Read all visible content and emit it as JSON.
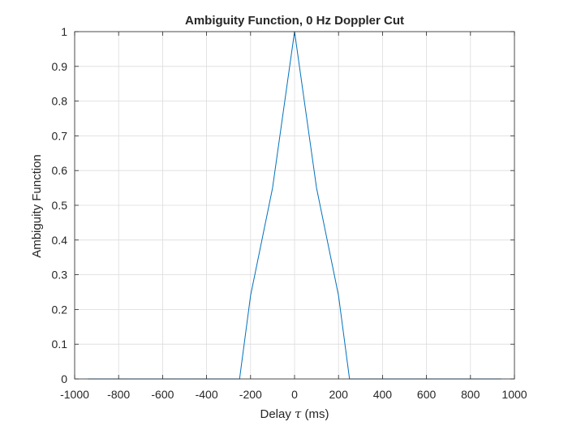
{
  "chart_data": {
    "type": "line",
    "title": "Ambiguity Function, 0 Hz Doppler Cut",
    "xlabel": {
      "prefix": "Delay ",
      "symbol": "τ",
      "suffix": " (ms)"
    },
    "ylabel": "Ambiguity Function",
    "xlim": [
      -1000,
      1000
    ],
    "ylim": [
      0,
      1
    ],
    "xticks": [
      -1000,
      -800,
      -600,
      -400,
      -200,
      0,
      200,
      400,
      600,
      800,
      1000
    ],
    "yticks": [
      0,
      0.1,
      0.2,
      0.3,
      0.4,
      0.5,
      0.6,
      0.7,
      0.8,
      0.9,
      1
    ],
    "xtick_labels": [
      "-1000",
      "-800",
      "-600",
      "-400",
      "-200",
      "0",
      "200",
      "400",
      "600",
      "800",
      "1000"
    ],
    "ytick_labels": [
      "0",
      "0.1",
      "0.2",
      "0.3",
      "0.4",
      "0.5",
      "0.6",
      "0.7",
      "0.8",
      "0.9",
      "1"
    ],
    "grid": true,
    "box": true,
    "colors": {
      "line": "#0072BD",
      "grid": "#dcdcdc",
      "axis": "#262626",
      "background": "#ffffff"
    },
    "series": [
      {
        "x": [
          -940,
          -250,
          -200,
          -100,
          0,
          100,
          200,
          250,
          940
        ],
        "y": [
          0,
          0,
          0.24,
          0.55,
          1,
          0.55,
          0.24,
          0,
          0
        ]
      }
    ]
  }
}
